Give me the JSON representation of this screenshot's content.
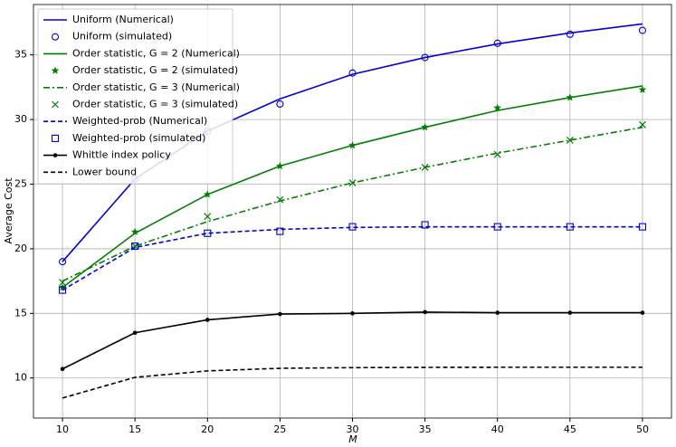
{
  "chart_data": {
    "type": "line",
    "xlabel": "M",
    "ylabel": "Average Cost",
    "x": [
      10,
      15,
      20,
      25,
      30,
      35,
      40,
      45,
      50
    ],
    "xlim": [
      8,
      52
    ],
    "xticks": [
      10,
      15,
      20,
      25,
      30,
      35,
      40,
      45,
      50
    ],
    "ylim": [
      6.9,
      38.9
    ],
    "yticks": [
      10,
      15,
      20,
      25,
      30,
      35
    ],
    "grid": true,
    "legend": "upper left",
    "series": [
      {
        "name": "Uniform (Numerical)",
        "color": "#0000dd",
        "line": "solid",
        "marker": null,
        "values": [
          19.0,
          25.4,
          29.1,
          31.6,
          33.5,
          34.8,
          35.85,
          36.7,
          37.4
        ]
      },
      {
        "name": "Uniform (simulated)",
        "color": "#0000dd",
        "line": null,
        "marker": "circle",
        "values": [
          19.0,
          25.4,
          29.1,
          31.2,
          33.6,
          34.8,
          35.9,
          36.6,
          36.9
        ]
      },
      {
        "name": "Order statistic, G = 2 (Numerical)",
        "color": "#008000",
        "line": "solid",
        "marker": null,
        "values": [
          17.0,
          21.2,
          24.2,
          26.4,
          28.0,
          29.4,
          30.7,
          31.7,
          32.6
        ]
      },
      {
        "name": "Order statistic, G = 2 (simulated)",
        "color": "#008000",
        "line": null,
        "marker": "star",
        "values": [
          17.0,
          21.3,
          24.2,
          26.4,
          28.0,
          29.4,
          30.9,
          31.7,
          32.3
        ]
      },
      {
        "name": "Order statistic, G = 3 (Numerical)",
        "color": "#008000",
        "line": "dashdot",
        "marker": null,
        "values": [
          17.5,
          20.2,
          22.1,
          23.7,
          25.1,
          26.3,
          27.4,
          28.4,
          29.4
        ]
      },
      {
        "name": "Order statistic, G = 3 (simulated)",
        "color": "#008000",
        "line": null,
        "marker": "x",
        "values": [
          17.4,
          20.2,
          22.5,
          23.8,
          25.1,
          26.3,
          27.3,
          28.4,
          29.6
        ]
      },
      {
        "name": "Weighted-prob (Numerical)",
        "color": "#0000dd",
        "line": "dashed",
        "marker": null,
        "values": [
          16.8,
          20.1,
          21.2,
          21.5,
          21.65,
          21.7,
          21.7,
          21.7,
          21.7
        ]
      },
      {
        "name": "Weighted-prob (simulated)",
        "color": "#0000dd",
        "line": null,
        "marker": "square",
        "values": [
          16.8,
          20.2,
          21.2,
          21.35,
          21.7,
          21.85,
          21.7,
          21.7,
          21.7
        ]
      },
      {
        "name": "Whittle index policy",
        "color": "#000000",
        "line": "solid",
        "marker": "dot",
        "values": [
          10.7,
          13.5,
          14.5,
          14.95,
          15.0,
          15.1,
          15.05,
          15.05,
          15.05
        ]
      },
      {
        "name": "Lower bound",
        "color": "#000000",
        "line": "dashed",
        "marker": null,
        "values": [
          8.45,
          10.05,
          10.55,
          10.75,
          10.8,
          10.82,
          10.83,
          10.83,
          10.83
        ]
      }
    ]
  }
}
